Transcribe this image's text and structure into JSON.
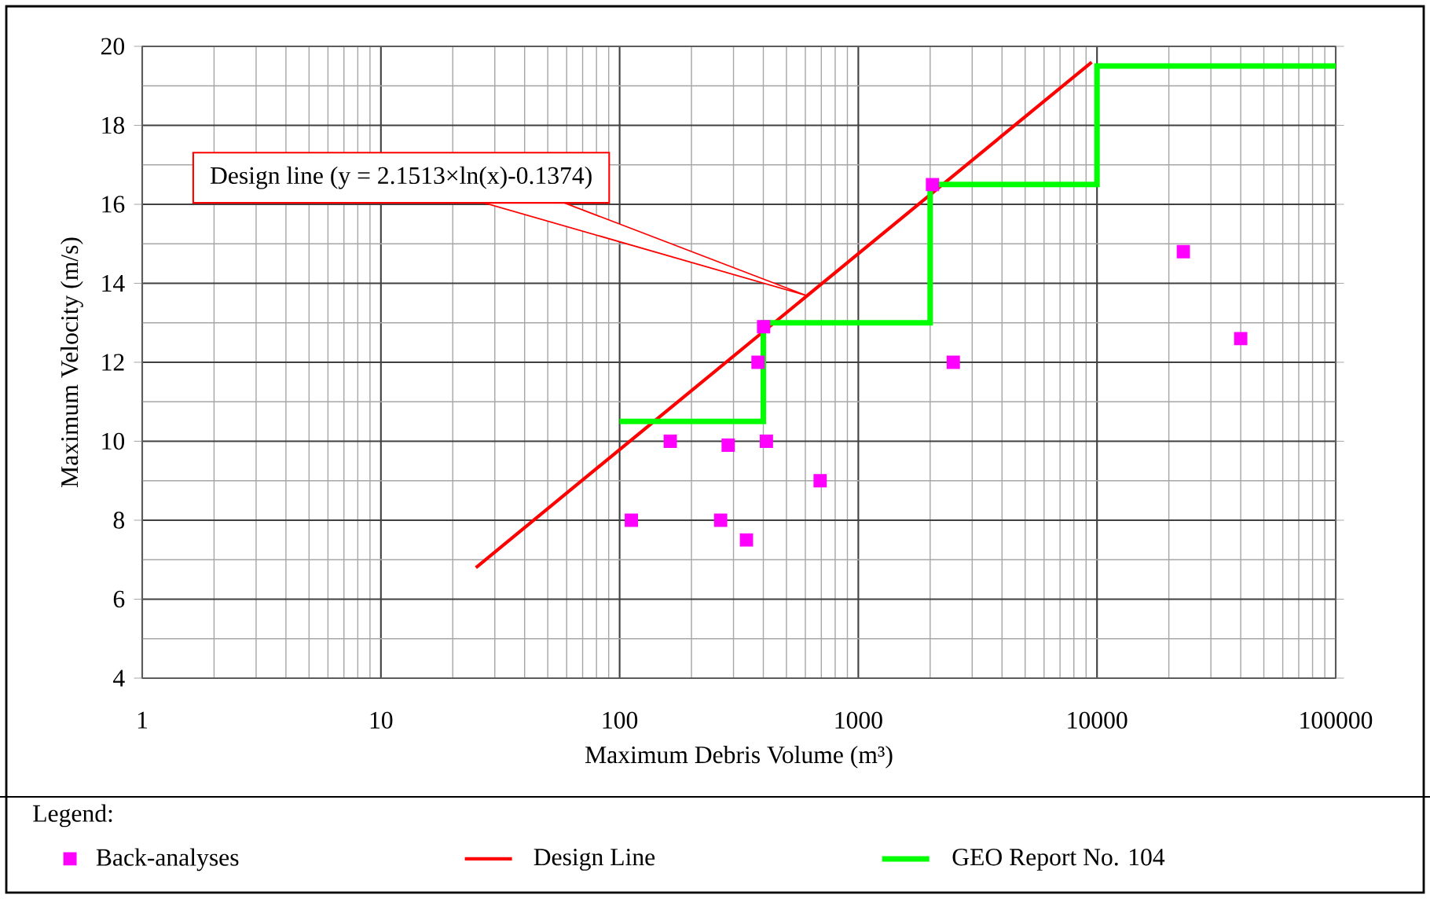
{
  "chart_data": {
    "type": "scatter",
    "xlabel": "Maximum Debris Volume (m³)",
    "ylabel": "Maximum Velocity (m/s)",
    "legend_title": "Legend:",
    "log": "x",
    "xlim": [
      1,
      100000
    ],
    "xticks": [
      1,
      10,
      100,
      1000,
      10000,
      100000
    ],
    "ylim": [
      4,
      20
    ],
    "yticks": [
      4,
      6,
      8,
      10,
      12,
      14,
      16,
      18,
      20
    ],
    "grid": true,
    "legend": "bottom",
    "annotations": [
      {
        "text": "Design line (y = 2.1513×ln(x)-0.1374)",
        "x": 600,
        "y": 13.7
      }
    ],
    "series": [
      {
        "name": "Back-analyses",
        "marker": "square",
        "color": "#ff00ff",
        "x": [
          112,
          163,
          265,
          285,
          340,
          380,
          401,
          412,
          692,
          2045,
          2500,
          23000,
          40000
        ],
        "values": [
          8.0,
          10.0,
          8.0,
          9.9,
          7.5,
          12.0,
          12.9,
          10.0,
          9.0,
          16.5,
          12.0,
          14.8,
          12.6
        ]
      },
      {
        "name": "Design Line",
        "type": "line",
        "color": "#ff0000",
        "x": [
          25,
          9500
        ],
        "values": [
          6.8,
          19.6
        ]
      },
      {
        "name": "GEO Report No. 104",
        "type": "step",
        "color": "#00ff00",
        "x": [
          100,
          400,
          2000,
          10000,
          100000
        ],
        "values": [
          10.5,
          13.0,
          16.5,
          19.5,
          19.5
        ]
      }
    ]
  }
}
